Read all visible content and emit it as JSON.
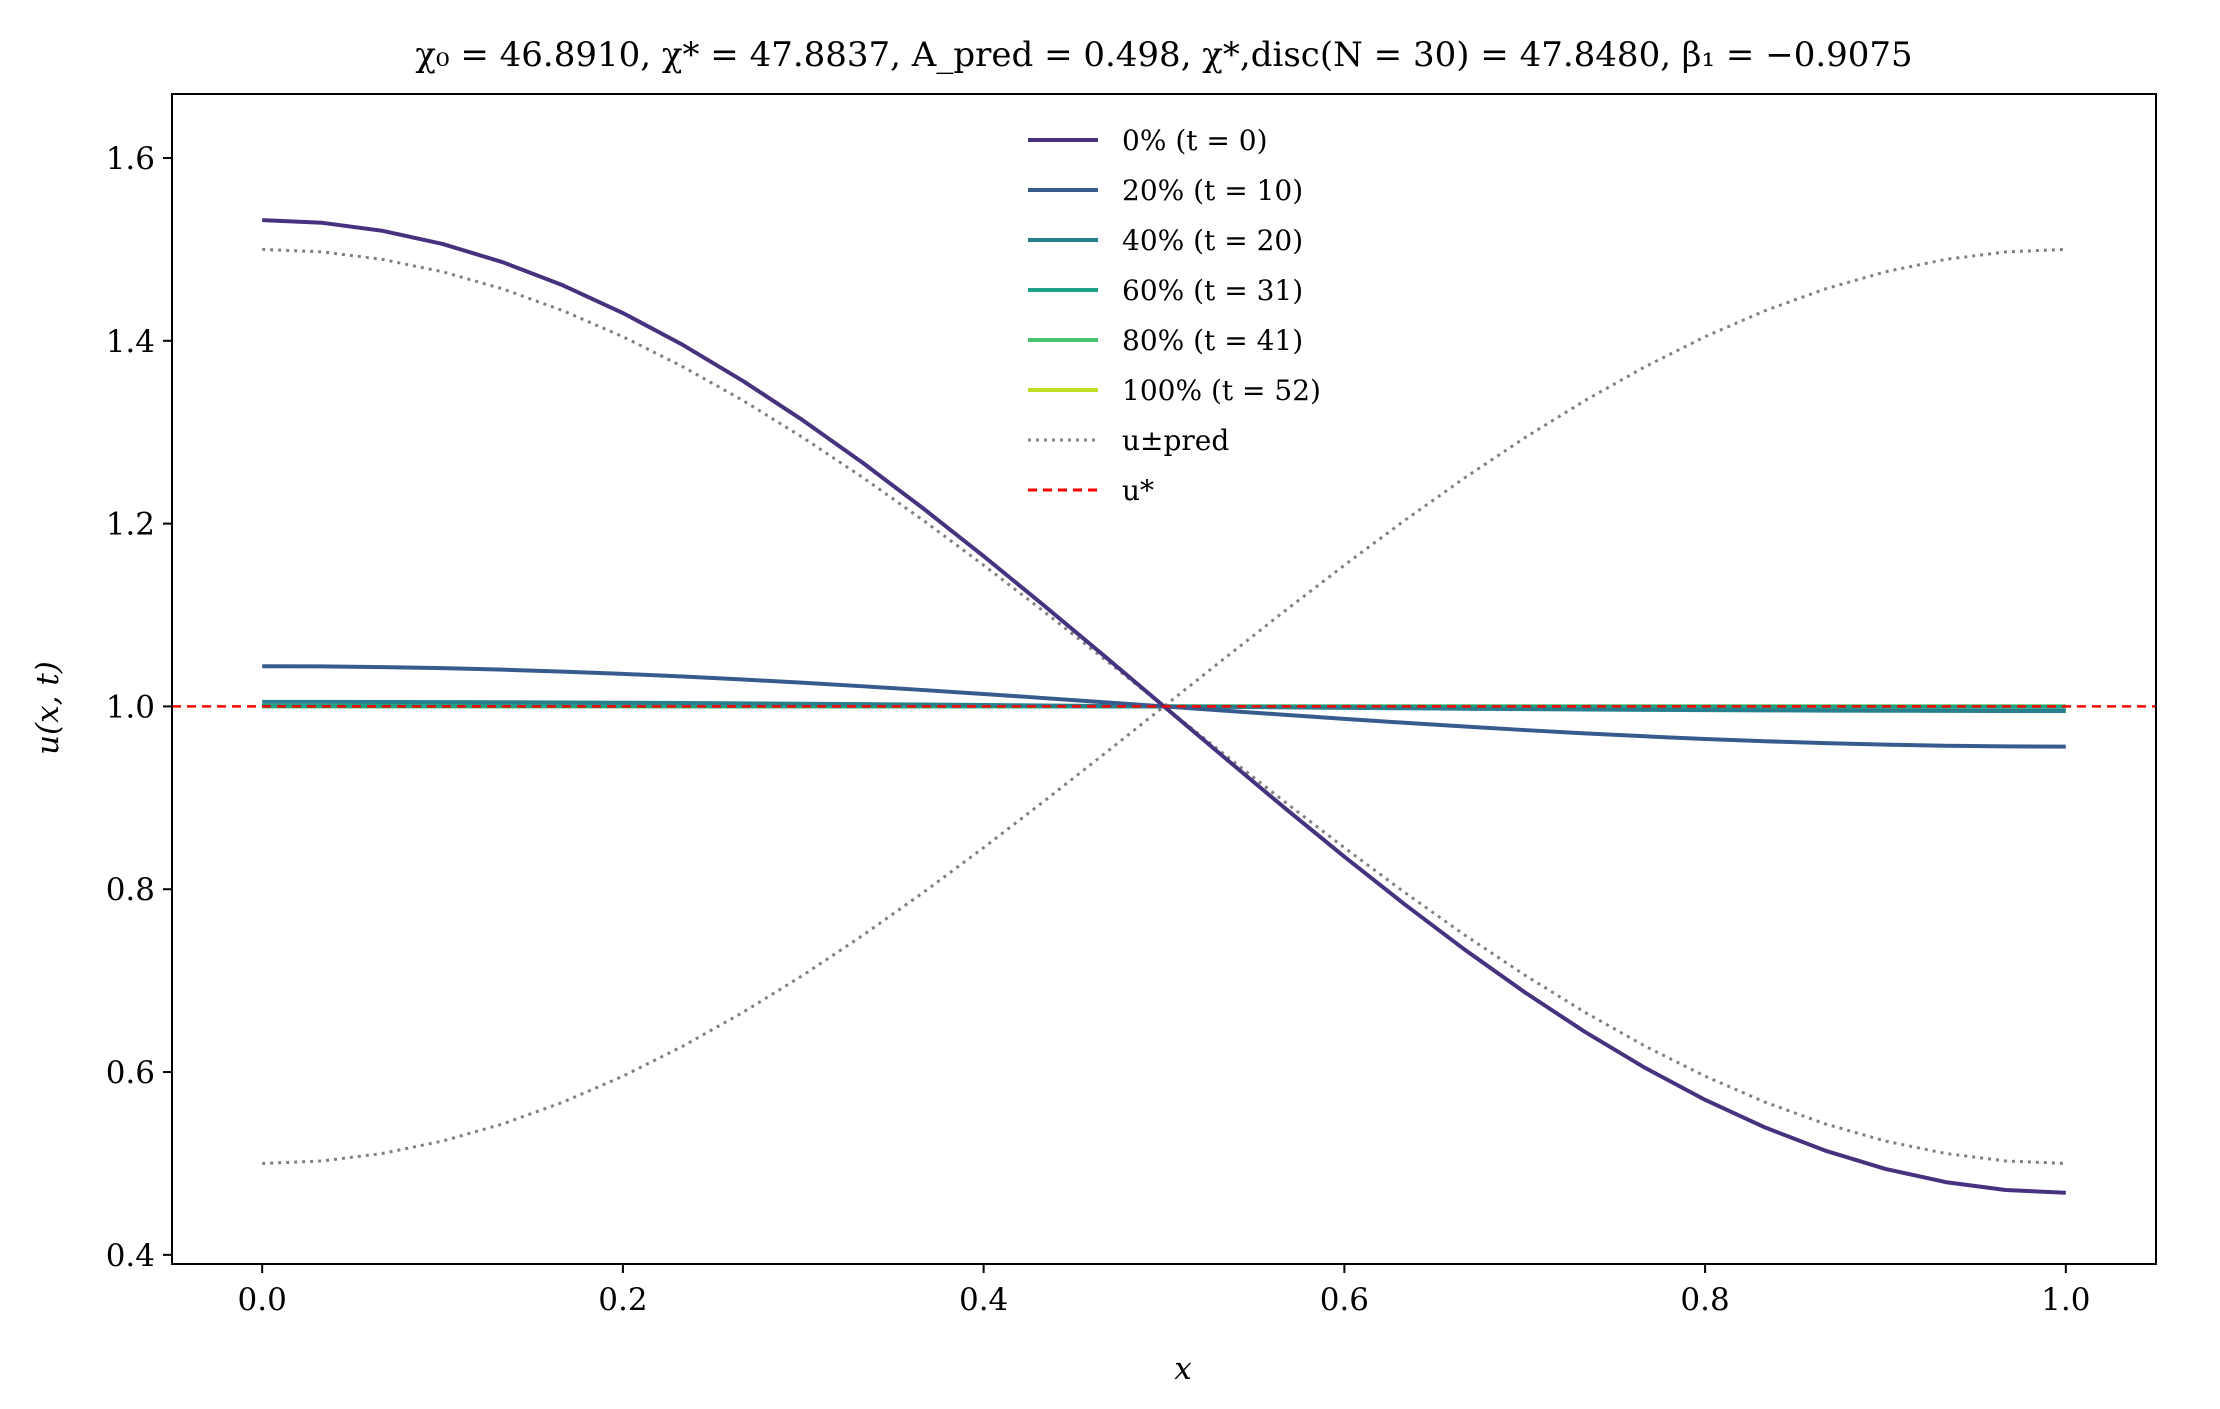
{
  "chart_data": {
    "type": "line",
    "title": "χ₀ = 46.8910,  χ* = 47.8837,  A_pred = 0.498,  χ*,disc(N = 30) = 47.8480,  β₁ = −0.9075",
    "xlabel": "x",
    "ylabel": "u(x, t)",
    "xlim": [
      -0.05,
      1.05
    ],
    "ylim": [
      0.39,
      1.67
    ],
    "x_ticks": [
      "0.0",
      "0.2",
      "0.4",
      "0.6",
      "0.8",
      "1.0"
    ],
    "x_tick_values": [
      0.0,
      0.2,
      0.4,
      0.6,
      0.8,
      1.0
    ],
    "y_ticks": [
      "0.4",
      "0.6",
      "0.8",
      "1.0",
      "1.2",
      "1.4",
      "1.6"
    ],
    "y_tick_values": [
      0.4,
      0.6,
      0.8,
      1.0,
      1.2,
      1.4,
      1.6
    ],
    "grid": false,
    "legend_position": "top-center",
    "series": [
      {
        "name": "0% (t = 0)",
        "color": "#46327e",
        "style": "solid",
        "amplitude": 0.532
      },
      {
        "name": "20% (t = 10)",
        "color": "#365c8d",
        "style": "solid",
        "amplitude": 0.044
      },
      {
        "name": "40% (t = 20)",
        "color": "#277f8e",
        "style": "solid",
        "amplitude": 0.005
      },
      {
        "name": "60% (t = 31)",
        "color": "#1fa187",
        "style": "solid",
        "amplitude": 0.0005
      },
      {
        "name": "80% (t = 41)",
        "color": "#4ac16d",
        "style": "solid",
        "amplitude": 0.0
      },
      {
        "name": "100% (t = 52)",
        "color": "#bddf26",
        "style": "solid",
        "amplitude": 0.0
      },
      {
        "name": "u±pred",
        "color": "#808080",
        "style": "dotted",
        "amplitude": 0.5
      },
      {
        "name": "u*",
        "color": "#ff0000",
        "style": "dashed",
        "value": 1.0
      }
    ]
  }
}
